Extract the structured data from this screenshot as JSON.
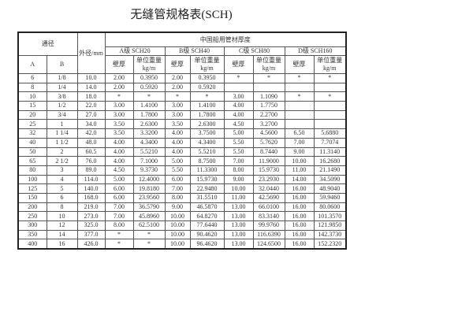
{
  "title": "无缝管规格表(SCH)",
  "header": {
    "nominal": "通径",
    "col_a": "A",
    "col_b": "B",
    "od": "外径/mm",
    "group": "中国船用管材厚度",
    "grades": [
      "A级 SCH20",
      "B级 SCH40",
      "C级 SCH80",
      "D级 SCH160"
    ],
    "wall": "壁厚",
    "weight": "单位重量 kg/m"
  },
  "rows": [
    [
      "6",
      "1/8",
      "10.0",
      "2.00",
      "0.3950",
      "2.00",
      "0.3950",
      "*",
      "*",
      "*",
      "*"
    ],
    [
      "8",
      "1/4",
      "14.0",
      "2.00",
      "0.5920",
      "2.00",
      "0.5920",
      "",
      "",
      "",
      ""
    ],
    [
      "10",
      "3/8",
      "18.0",
      "*",
      "*",
      "*",
      "*",
      "3.00",
      "1.1090",
      "*",
      "*"
    ],
    [
      "15",
      "1/2",
      "22.0",
      "3.00",
      "1.4100",
      "3.00",
      "1.4100",
      "4.00",
      "1.7750",
      "",
      ""
    ],
    [
      "20",
      "3/4",
      "27.0",
      "3.00",
      "1.7800",
      "3.00",
      "1.7800",
      "4.00",
      "2.2700",
      "",
      ""
    ],
    [
      "25",
      "1",
      "34.0",
      "3.50",
      "2.6300",
      "3.50",
      "2.6300",
      "4.50",
      "3.2700",
      "",
      ""
    ],
    [
      "32",
      "1 1/4",
      "42.0",
      "3.50",
      "3.3200",
      "4.00",
      "3.7500",
      "5.00",
      "4.5600",
      "6.50",
      "5.6880"
    ],
    [
      "40",
      "1 1/2",
      "48.0",
      "4.00",
      "4.3400",
      "4.00",
      "4.3400",
      "5.50",
      "5.7620",
      "7.00",
      "7.7074"
    ],
    [
      "50",
      "2",
      "60.5",
      "4.00",
      "5.5210",
      "4.00",
      "5.5210",
      "5.50",
      "8.7440",
      "9.00",
      "11.3140"
    ],
    [
      "65",
      "2 1/2",
      "76.0",
      "4.00",
      "7.1000",
      "5.00",
      "8.7500",
      "7.00",
      "11.9000",
      "10.00",
      "16.2680"
    ],
    [
      "80",
      "3",
      "89.0",
      "4.50",
      "9.3730",
      "5.50",
      "11.3300",
      "8.00",
      "15.9730",
      "11.00",
      "21.1490"
    ],
    [
      "100",
      "4",
      "114.0",
      "5.00",
      "12.4000",
      "6.00",
      "15.9730",
      "9.00",
      "23.2930",
      "14.00",
      "34.5090"
    ],
    [
      "125",
      "5",
      "140.0",
      "6.00",
      "19.8180",
      "7.00",
      "22.9480",
      "10.00",
      "32.0440",
      "16.00",
      "48.9040"
    ],
    [
      "150",
      "6",
      "168.0",
      "6.00",
      "23.9560",
      "8.00",
      "31.5510",
      "11.00",
      "42.5690",
      "16.00",
      "59.9460"
    ],
    [
      "200",
      "8",
      "219.0",
      "7.00",
      "36.5790",
      "9.00",
      "46.5870",
      "13.00",
      "66.0100",
      "16.00",
      "80.0600"
    ],
    [
      "250",
      "10",
      "273.0",
      "7.00",
      "45.8960",
      "10.00",
      "64.8270",
      "13.00",
      "83.3140",
      "16.00",
      "101.3570"
    ],
    [
      "300",
      "12",
      "325.0",
      "8.00",
      "62.5100",
      "10.00",
      "77.6440",
      "13.00",
      "99.9760",
      "16.00",
      "121.9850"
    ],
    [
      "350",
      "14",
      "377.0",
      "*",
      "*",
      "10.00",
      "90.4620",
      "13.00",
      "116.6390",
      "16.00",
      "142.3730"
    ],
    [
      "400",
      "16",
      "426.0",
      "*",
      "*",
      "10.00",
      "96.4620",
      "13.00",
      "124.6500",
      "16.00",
      "152.2320"
    ]
  ]
}
